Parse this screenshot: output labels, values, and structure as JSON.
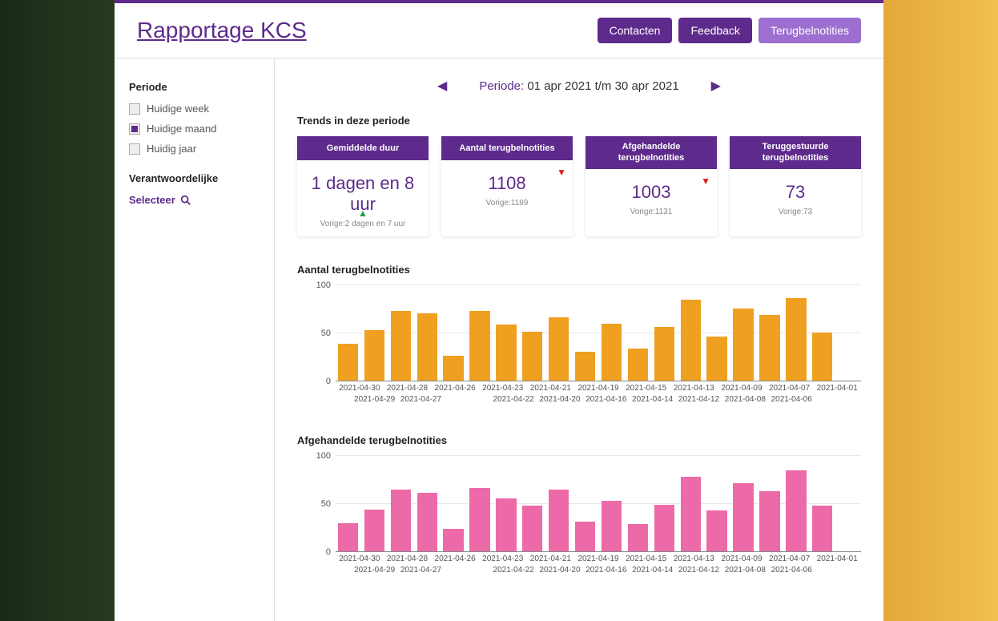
{
  "header": {
    "title": "Rapportage KCS",
    "nav": [
      {
        "label": "Contacten",
        "active": false
      },
      {
        "label": "Feedback",
        "active": false
      },
      {
        "label": "Terugbelnotities",
        "active": true
      }
    ]
  },
  "sidebar": {
    "period_heading": "Periode",
    "period_options": [
      {
        "label": "Huidige week",
        "checked": false
      },
      {
        "label": "Huidige maand",
        "checked": true
      },
      {
        "label": "Huidig jaar",
        "checked": false
      }
    ],
    "responsible_heading": "Verantwoordelijke",
    "selecteer_label": "Selecteer"
  },
  "period_nav": {
    "label": "Periode:",
    "range": "01 apr 2021 t/m 30 apr 2021"
  },
  "trends": {
    "heading": "Trends in deze periode",
    "cards": [
      {
        "title": "Gemiddelde duur",
        "value": "1 dagen en 8 uur",
        "prev": "Vorige:2 dagen en 7 uur",
        "trend": "up"
      },
      {
        "title": "Aantal terugbelnotities",
        "value": "1108",
        "prev": "Vorige:1189",
        "trend": "down"
      },
      {
        "title": "Afgehandelde terugbelnotities",
        "value": "1003",
        "prev": "Vorige:1131",
        "trend": "down"
      },
      {
        "title": "Teruggestuurde terugbelnotities",
        "value": "73",
        "prev": "Vorige:73",
        "trend": "none"
      }
    ]
  },
  "charts": [
    {
      "title": "Aantal terugbelnotities",
      "color": "#f0a020",
      "ylim": [
        0,
        100
      ],
      "yticks": [
        0,
        50,
        100
      ],
      "data": [
        {
          "label": "2021-04-30",
          "value": 39
        },
        {
          "label": "2021-04-29",
          "value": 53
        },
        {
          "label": "2021-04-28",
          "value": 73
        },
        {
          "label": "2021-04-27",
          "value": 71
        },
        {
          "label": "2021-04-26",
          "value": 27
        },
        {
          "label": "2021-04-23",
          "value": 73
        },
        {
          "label": "2021-04-22",
          "value": 59
        },
        {
          "label": "2021-04-21",
          "value": 52
        },
        {
          "label": "2021-04-20",
          "value": 67
        },
        {
          "label": "2021-04-19",
          "value": 31
        },
        {
          "label": "2021-04-16",
          "value": 60
        },
        {
          "label": "2021-04-15",
          "value": 34
        },
        {
          "label": "2021-04-14",
          "value": 57
        },
        {
          "label": "2021-04-13",
          "value": 85
        },
        {
          "label": "2021-04-12",
          "value": 47
        },
        {
          "label": "2021-04-09",
          "value": 76
        },
        {
          "label": "2021-04-08",
          "value": 69
        },
        {
          "label": "2021-04-07",
          "value": 87
        },
        {
          "label": "2021-04-06",
          "value": 51
        },
        {
          "label": "2021-04-01",
          "value": 0
        }
      ],
      "x_top": [
        "2021-04-30",
        "2021-04-28",
        "2021-04-26",
        "2021-04-23",
        "2021-04-21",
        "2021-04-19",
        "2021-04-15",
        "2021-04-13",
        "2021-04-09",
        "2021-04-07",
        "2021-04-01"
      ],
      "x_bot": [
        "2021-04-29",
        "2021-04-27",
        "",
        "2021-04-22",
        "2021-04-20",
        "2021-04-16",
        "2021-04-14",
        "2021-04-12",
        "2021-04-08",
        "2021-04-06",
        ""
      ]
    },
    {
      "title": "Afgehandelde terugbelnotities",
      "color": "#ed6aa8",
      "ylim": [
        0,
        100
      ],
      "yticks": [
        0,
        50,
        100
      ],
      "data": [
        {
          "label": "2021-04-30",
          "value": 30
        },
        {
          "label": "2021-04-29",
          "value": 44
        },
        {
          "label": "2021-04-28",
          "value": 65
        },
        {
          "label": "2021-04-27",
          "value": 62
        },
        {
          "label": "2021-04-26",
          "value": 24
        },
        {
          "label": "2021-04-23",
          "value": 67
        },
        {
          "label": "2021-04-22",
          "value": 56
        },
        {
          "label": "2021-04-21",
          "value": 48
        },
        {
          "label": "2021-04-20",
          "value": 65
        },
        {
          "label": "2021-04-19",
          "value": 32
        },
        {
          "label": "2021-04-16",
          "value": 53
        },
        {
          "label": "2021-04-15",
          "value": 29
        },
        {
          "label": "2021-04-14",
          "value": 49
        },
        {
          "label": "2021-04-13",
          "value": 78
        },
        {
          "label": "2021-04-12",
          "value": 43
        },
        {
          "label": "2021-04-09",
          "value": 72
        },
        {
          "label": "2021-04-08",
          "value": 63
        },
        {
          "label": "2021-04-07",
          "value": 85
        },
        {
          "label": "2021-04-06",
          "value": 48
        },
        {
          "label": "2021-04-01",
          "value": 0
        }
      ],
      "x_top": [
        "2021-04-30",
        "2021-04-28",
        "2021-04-26",
        "2021-04-23",
        "2021-04-21",
        "2021-04-19",
        "2021-04-15",
        "2021-04-13",
        "2021-04-09",
        "2021-04-07",
        "2021-04-01"
      ],
      "x_bot": [
        "2021-04-29",
        "2021-04-27",
        "",
        "2021-04-22",
        "2021-04-20",
        "2021-04-16",
        "2021-04-14",
        "2021-04-12",
        "2021-04-08",
        "2021-04-06",
        ""
      ]
    }
  ],
  "colors": {
    "brand": "#5e2b8c",
    "brand_light": "#9c6fd0"
  }
}
